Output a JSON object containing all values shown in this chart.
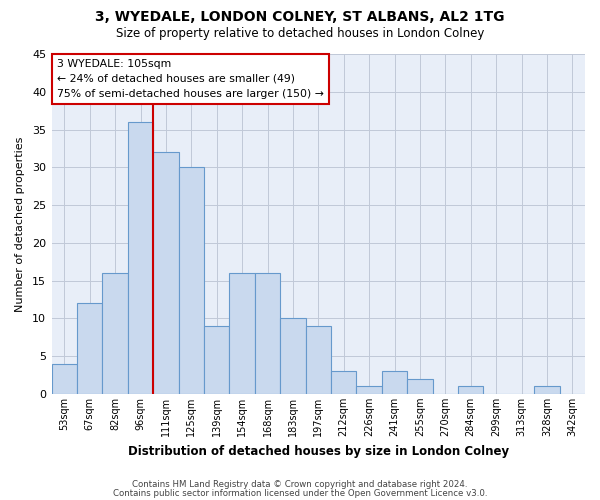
{
  "title": "3, WYEDALE, LONDON COLNEY, ST ALBANS, AL2 1TG",
  "subtitle": "Size of property relative to detached houses in London Colney",
  "xlabel": "Distribution of detached houses by size in London Colney",
  "ylabel": "Number of detached properties",
  "bins": [
    "53sqm",
    "67sqm",
    "82sqm",
    "96sqm",
    "111sqm",
    "125sqm",
    "139sqm",
    "154sqm",
    "168sqm",
    "183sqm",
    "197sqm",
    "212sqm",
    "226sqm",
    "241sqm",
    "255sqm",
    "270sqm",
    "284sqm",
    "299sqm",
    "313sqm",
    "328sqm",
    "342sqm"
  ],
  "bar_values": [
    4,
    12,
    16,
    36,
    32,
    30,
    9,
    16,
    16,
    10,
    9,
    3,
    1,
    3,
    2,
    0,
    1,
    0,
    0,
    1,
    0
  ],
  "bar_color": "#c9d9ee",
  "bar_edge_color": "#6699cc",
  "ylim": [
    0,
    45
  ],
  "yticks": [
    0,
    5,
    10,
    15,
    20,
    25,
    30,
    35,
    40,
    45
  ],
  "annotation_line1": "3 WYEDALE: 105sqm",
  "annotation_line2": "← 24% of detached houses are smaller (49)",
  "annotation_line3": "75% of semi-detached houses are larger (150) →",
  "annotation_box_facecolor": "#ffffff",
  "annotation_box_edgecolor": "#cc0000",
  "vline_color": "#cc0000",
  "vline_position": 3.5,
  "grid_color": "#c0c8d8",
  "plot_bg_color": "#e8eef8",
  "fig_bg_color": "#ffffff",
  "footer_line1": "Contains HM Land Registry data © Crown copyright and database right 2024.",
  "footer_line2": "Contains public sector information licensed under the Open Government Licence v3.0."
}
